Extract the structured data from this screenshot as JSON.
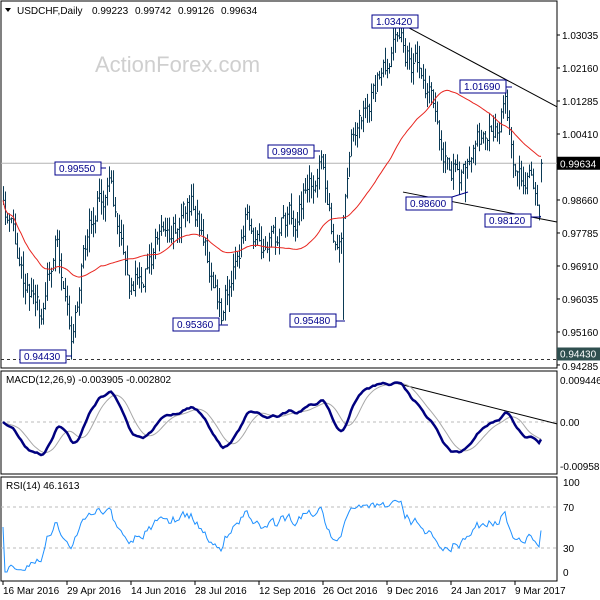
{
  "header": {
    "symbol": "USDCHF,Daily",
    "open": "0.99223",
    "high": "0.99742",
    "low": "0.99126",
    "close": "0.99634"
  },
  "watermark": "ActionForex.com",
  "price_axis": {
    "ticks": [
      "1.03035",
      "1.02160",
      "1.01285",
      "1.00410",
      "0.98660",
      "0.97785",
      "0.96910",
      "0.96035",
      "0.95160",
      "0.94285"
    ],
    "current_price": "0.99634",
    "marked_level": "0.94430"
  },
  "macd": {
    "label": "MACD(12,26,9) -0.003905 -0.002802",
    "ticks": [
      "0.009446",
      "0.00",
      "-0.009588"
    ]
  },
  "rsi": {
    "label": "RSI(14) 46.1613",
    "ticks": [
      "100",
      "70",
      "30",
      "0"
    ]
  },
  "date_axis": [
    "16 Mar 2016",
    "29 Apr 2016",
    "14 Jun 2016",
    "28 Jul 2016",
    "12 Sep 2016",
    "26 Oct 2016",
    "9 Dec 2016",
    "24 Jan 2017",
    "9 Mar 2017"
  ],
  "swing_labels": [
    "0.99550",
    "0.99980",
    "1.03420",
    "1.01690",
    "0.98600",
    "0.98120",
    "0.95360",
    "0.95480",
    "0.94430"
  ],
  "colors": {
    "bars": "#0b3a55",
    "moving_average": "#e8251f",
    "macd": "#00007f",
    "signal": "#a8a8a8",
    "rsi": "#1e90ff",
    "label_border": "#00008b"
  },
  "chart_data": {
    "type": "ohlc",
    "symbol": "USDCHF",
    "timeframe": "Daily",
    "start_date": "2016-03-16",
    "end_date": "2017-03-28",
    "ylim": [
      0.94285,
      1.035
    ],
    "last_bar": {
      "open": 0.99223,
      "high": 0.99742,
      "low": 0.99126,
      "close": 0.99634
    },
    "close_path": [
      {
        "date": "2016-03-16",
        "value": 0.99
      },
      {
        "date": "2016-03-24",
        "value": 0.975
      },
      {
        "date": "2016-04-11",
        "value": 0.955
      },
      {
        "date": "2016-04-22",
        "value": 0.975
      },
      {
        "date": "2016-05-03",
        "value": 0.952
      },
      {
        "date": "2016-05-18",
        "value": 0.985
      },
      {
        "date": "2016-05-30",
        "value": 0.992
      },
      {
        "date": "2016-06-10",
        "value": 0.962
      },
      {
        "date": "2016-06-24",
        "value": 0.97
      },
      {
        "date": "2016-07-08",
        "value": 0.978
      },
      {
        "date": "2016-07-26",
        "value": 0.988
      },
      {
        "date": "2016-08-16",
        "value": 0.958
      },
      {
        "date": "2016-09-01",
        "value": 0.982
      },
      {
        "date": "2016-09-16",
        "value": 0.972
      },
      {
        "date": "2016-10-07",
        "value": 0.985
      },
      {
        "date": "2016-10-25",
        "value": 0.996
      },
      {
        "date": "2016-11-04",
        "value": 0.972
      },
      {
        "date": "2016-11-09",
        "value": 0.98
      },
      {
        "date": "2016-11-16",
        "value": 1.004
      },
      {
        "date": "2016-12-01",
        "value": 1.018
      },
      {
        "date": "2016-12-15",
        "value": 1.028
      },
      {
        "date": "2017-01-03",
        "value": 1.02
      },
      {
        "date": "2017-01-17",
        "value": 1.002
      },
      {
        "date": "2017-02-02",
        "value": 0.991
      },
      {
        "date": "2017-02-16",
        "value": 1.005
      },
      {
        "date": "2017-03-02",
        "value": 1.012
      },
      {
        "date": "2017-03-14",
        "value": 0.99
      },
      {
        "date": "2017-03-20",
        "value": 0.994
      },
      {
        "date": "2017-03-27",
        "value": 0.985
      },
      {
        "date": "2017-03-28",
        "value": 0.99634
      }
    ],
    "swing_points": [
      {
        "date": "2016-05-30",
        "value": 0.9955,
        "kind": "high"
      },
      {
        "date": "2016-10-25",
        "value": 0.9998,
        "kind": "high"
      },
      {
        "date": "2016-12-15",
        "value": 1.0342,
        "kind": "high"
      },
      {
        "date": "2017-03-02",
        "value": 1.0169,
        "kind": "high"
      },
      {
        "date": "2017-02-02",
        "value": 0.986,
        "kind": "low"
      },
      {
        "date": "2017-03-27",
        "value": 0.9812,
        "kind": "low"
      },
      {
        "date": "2016-08-16",
        "value": 0.9536,
        "kind": "low"
      },
      {
        "date": "2016-11-09",
        "value": 0.9548,
        "kind": "low"
      },
      {
        "date": "2016-05-03",
        "value": 0.9443,
        "kind": "low"
      }
    ],
    "moving_average": {
      "type": "SMA",
      "period": 50
    },
    "trendlines": [
      {
        "panel": "price",
        "from": {
          "date": "2016-12-15",
          "value": 1.0342
        },
        "to": {
          "date": "2017-04-10",
          "value": 1.0113
        }
      },
      {
        "panel": "price",
        "from": {
          "date": "2016-12-21",
          "value": 0.9887
        },
        "to": {
          "date": "2017-04-10",
          "value": 0.98076
        }
      },
      {
        "panel": "macd",
        "from": {
          "date": "2016-12-14",
          "value": 0.0085
        },
        "to": {
          "date": "2017-04-10",
          "value": -0.0004
        }
      }
    ],
    "macd_params": [
      12,
      26,
      9
    ],
    "macd_last": {
      "macd": -0.003905,
      "signal": -0.002802
    },
    "macd_ylim": [
      -0.009588,
      0.009446
    ],
    "rsi_period": 14,
    "rsi_last": 46.1613,
    "rsi_levels": [
      30,
      70
    ],
    "rsi_ylim": [
      0,
      100
    ]
  }
}
